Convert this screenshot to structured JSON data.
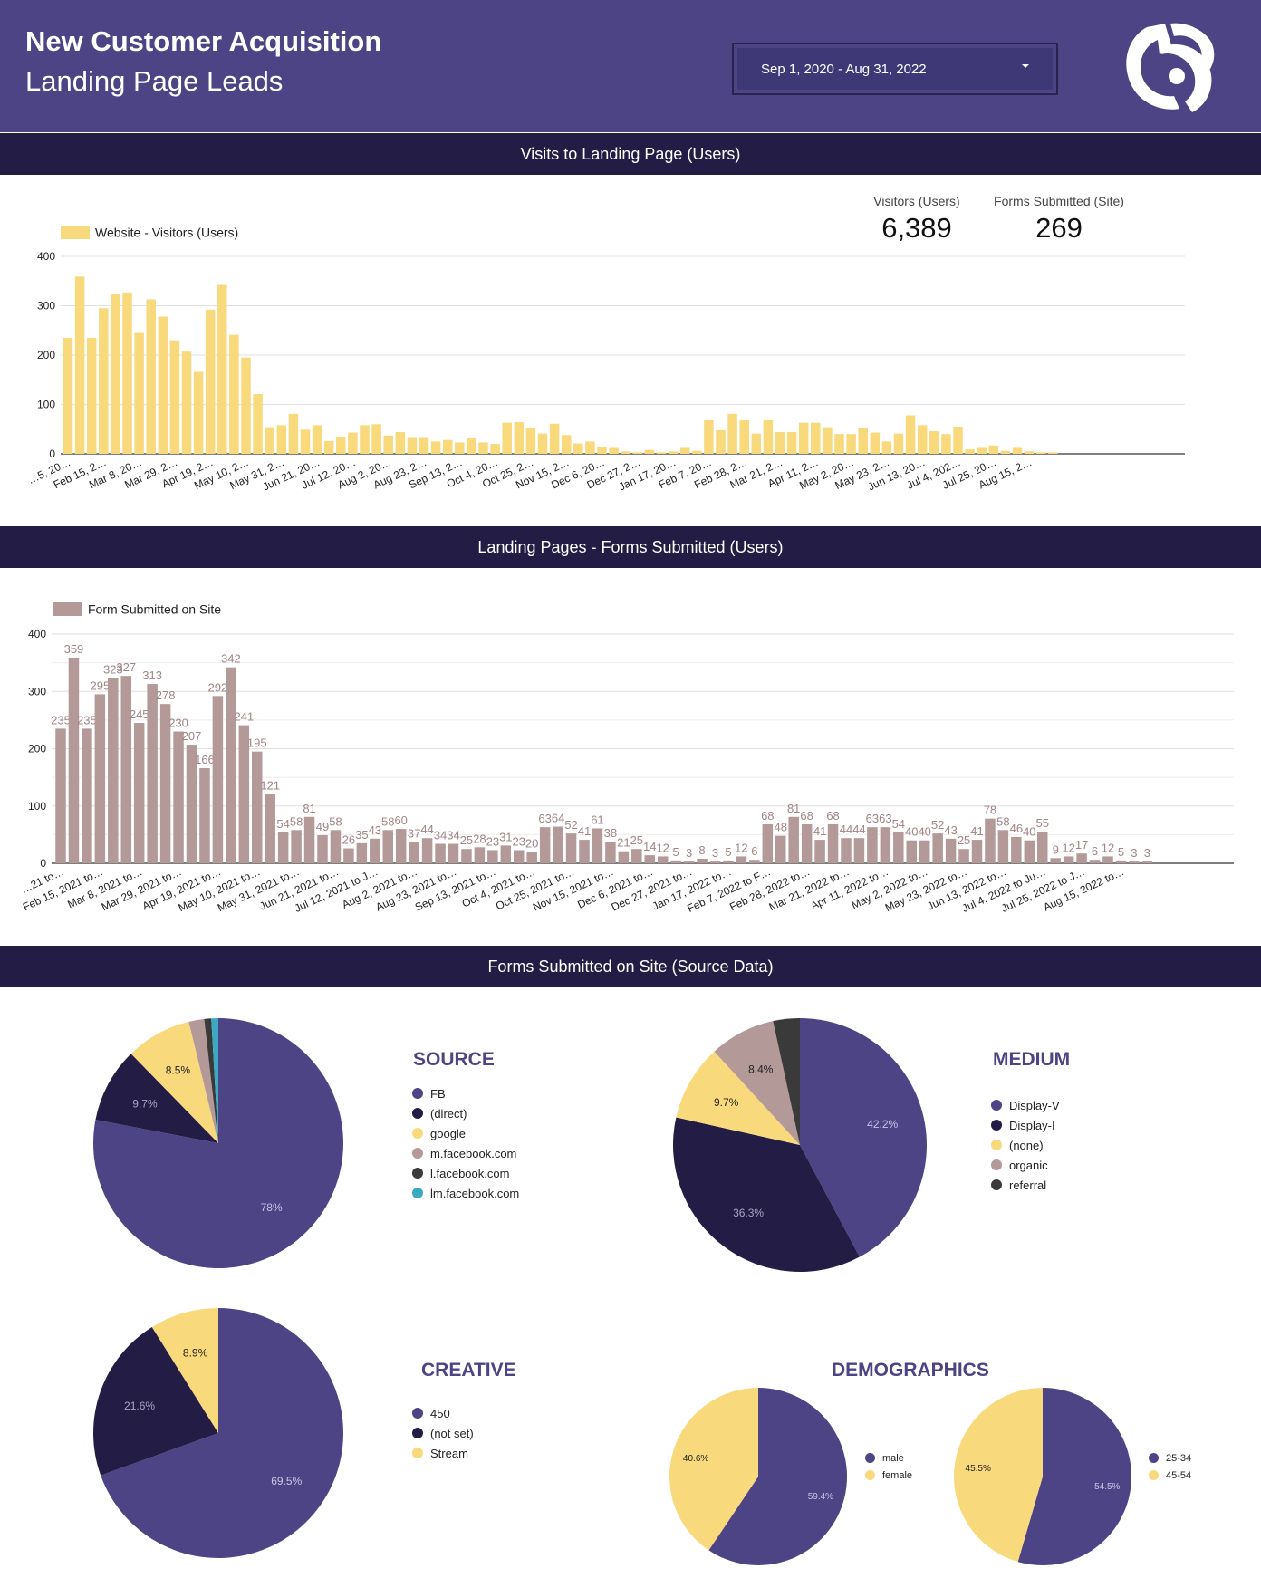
{
  "header": {
    "title": "New Customer Acquisition",
    "subtitle": "Landing Page Leads",
    "date_range": "Sep 1, 2020 - Aug 31, 2022"
  },
  "sections": {
    "visits": "Visits to Landing Page (Users)",
    "forms": "Landing Pages - Forms Submitted (Users)",
    "source": "Forms Submitted on Site (Source Data)"
  },
  "kpis": [
    {
      "label": "Visitors (Users)",
      "value": "6,389"
    },
    {
      "label": "Forms Submitted (Site)",
      "value": "269"
    }
  ],
  "colors": {
    "header_bg": "#4d4485",
    "band_bg": "#231d45",
    "yellow": "#f8d97c",
    "mauve": "#b49999",
    "purple": "#4d4485",
    "navy": "#231d45",
    "rose": "#b49999",
    "darkgray": "#3a3a3a",
    "teal": "#3ca9c3"
  },
  "chart_data": [
    {
      "type": "bar",
      "legend": "Website - Visitors (Users)",
      "x_tick_labels": [
        "…5, 20…",
        "Feb 15, 2…",
        "Mar 8, 20…",
        "Mar 29, 2…",
        "Apr 19, 2…",
        "May 10, 2…",
        "May 31, 2…",
        "Jun 21, 20…",
        "Jul 12, 20…",
        "Aug 2, 20…",
        "Aug 23, 2…",
        "Sep 13, 2…",
        "Oct 4, 20…",
        "Oct 25, 2…",
        "Nov 15, 2…",
        "Dec 6, 20…",
        "Dec 27, 2…",
        "Jan 17, 20…",
        "Feb 7, 20…",
        "Feb 28, 2…",
        "Mar 21, 2…",
        "Apr 11, 2…",
        "May 2, 20…",
        "May 23, 2…",
        "Jun 13, 20…",
        "Jul 4, 202…",
        "Jul 25, 20…",
        "Aug 15, 2…"
      ],
      "y_ticks": [
        0,
        100,
        200,
        300,
        400
      ],
      "ylim": [
        0,
        400
      ],
      "values": [
        235,
        359,
        235,
        295,
        323,
        327,
        245,
        313,
        278,
        230,
        207,
        166,
        292,
        342,
        241,
        195,
        121,
        54,
        58,
        81,
        49,
        58,
        26,
        35,
        43,
        58,
        60,
        37,
        44,
        34,
        34,
        25,
        28,
        23,
        31,
        23,
        20,
        63,
        64,
        52,
        41,
        61,
        38,
        21,
        25,
        14,
        12,
        5,
        3,
        8,
        3,
        5,
        12,
        6,
        68,
        48,
        81,
        68,
        41,
        68,
        44,
        44,
        63,
        63,
        54,
        40,
        40,
        52,
        43,
        25,
        41,
        78,
        58,
        46,
        40,
        55,
        9,
        12,
        17,
        6,
        12,
        5,
        3,
        3
      ]
    },
    {
      "type": "bar",
      "legend": "Form Submitted on Site",
      "x_tick_labels": [
        "…21 to…",
        "Feb 15, 2021 to…",
        "Mar 8, 2021 to…",
        "Mar 29, 2021 to…",
        "Apr 19, 2021 to…",
        "May 10, 2021 to…",
        "May 31, 2021 to…",
        "Jun 21, 2021 to…",
        "Jul 12, 2021 to J…",
        "Aug 2, 2021 to…",
        "Aug 23, 2021 to…",
        "Sep 13, 2021 to…",
        "Oct 4, 2021 to…",
        "Oct 25, 2021 to…",
        "Nov 15, 2021 to…",
        "Dec 6, 2021 to…",
        "Dec 27, 2021 to…",
        "Jan 17, 2022 to…",
        "Feb 7, 2022 to F…",
        "Feb 28, 2022 to…",
        "Mar 21, 2022 to…",
        "Apr 11, 2022 to…",
        "May 2, 2022 to…",
        "May 23, 2022 to…",
        "Jun 13, 2022 to…",
        "Jul 4, 2022 to Ju…",
        "Jul 25, 2022 to J…",
        "Aug 15, 2022 to…"
      ],
      "y_ticks": [
        0,
        100,
        200,
        300,
        400
      ],
      "ylim": [
        0,
        400
      ],
      "data_labels": [
        "235",
        "359",
        "235",
        "295",
        "323",
        "327",
        "245",
        "313",
        "278",
        "230",
        "207",
        "166",
        "292",
        "342",
        "241",
        "195",
        "121",
        "54",
        "58",
        "81",
        "49",
        "58",
        "26",
        "35",
        "43",
        "58",
        "60",
        "37",
        "44",
        "34",
        "34",
        "25",
        "28",
        "23",
        "31",
        "23",
        "20",
        "63",
        "64",
        "52",
        "41",
        "61",
        "38",
        "21",
        "25",
        "14",
        "12",
        "5",
        "3",
        "8",
        "3",
        "5",
        "12",
        "6",
        "68",
        "48",
        "81",
        "68",
        "41",
        "68",
        "44",
        "44",
        "63",
        "63",
        "54",
        "40",
        "40",
        "52",
        "43",
        "25",
        "41",
        "78",
        "58",
        "46",
        "40",
        "55",
        "9",
        "12",
        "17",
        "6",
        "12",
        "5",
        "3",
        "3"
      ],
      "values": [
        235,
        359,
        235,
        295,
        323,
        327,
        245,
        313,
        278,
        230,
        207,
        166,
        292,
        342,
        241,
        195,
        121,
        54,
        58,
        81,
        49,
        58,
        26,
        35,
        43,
        58,
        60,
        37,
        44,
        34,
        34,
        25,
        28,
        23,
        31,
        23,
        20,
        63,
        64,
        52,
        41,
        61,
        38,
        21,
        25,
        14,
        12,
        5,
        3,
        8,
        3,
        5,
        12,
        6,
        68,
        48,
        81,
        68,
        41,
        68,
        44,
        44,
        63,
        63,
        54,
        40,
        40,
        52,
        43,
        25,
        41,
        78,
        58,
        46,
        40,
        55,
        9,
        12,
        17,
        6,
        12,
        5,
        3,
        3
      ]
    },
    {
      "type": "pie",
      "title": "SOURCE",
      "slices": [
        {
          "label": "FB",
          "value": 78,
          "color": "#4d4485",
          "text": "78%",
          "text_color": "#c9c4e6"
        },
        {
          "label": "(direct)",
          "value": 9.7,
          "color": "#231d45",
          "text": "9.7%",
          "text_color": "#a8a4c4"
        },
        {
          "label": "google",
          "value": 8.5,
          "color": "#f8d97c",
          "text": "8.5%",
          "text_color": "#222"
        },
        {
          "label": "m.facebook.com",
          "value": 2.0,
          "color": "#b49999",
          "text": ""
        },
        {
          "label": "l.facebook.com",
          "value": 0.9,
          "color": "#3a3a3a",
          "text": ""
        },
        {
          "label": "lm.facebook.com",
          "value": 0.9,
          "color": "#3ca9c3",
          "text": ""
        }
      ]
    },
    {
      "type": "pie",
      "title": "MEDIUM",
      "slices": [
        {
          "label": "Display-V",
          "value": 42.2,
          "color": "#4d4485",
          "text": "42.2%",
          "text_color": "#c9c4e6"
        },
        {
          "label": "Display-I",
          "value": 36.3,
          "color": "#231d45",
          "text": "36.3%",
          "text_color": "#a8a4c4"
        },
        {
          "label": "(none)",
          "value": 9.7,
          "color": "#f8d97c",
          "text": "9.7%",
          "text_color": "#222"
        },
        {
          "label": "organic",
          "value": 8.4,
          "color": "#b49999",
          "text": "8.4%",
          "text_color": "#222"
        },
        {
          "label": "referral",
          "value": 3.4,
          "color": "#3a3a3a",
          "text": ""
        }
      ]
    },
    {
      "type": "pie",
      "title": "CREATIVE",
      "slices": [
        {
          "label": "450",
          "value": 69.5,
          "color": "#4d4485",
          "text": "69.5%",
          "text_color": "#c9c4e6"
        },
        {
          "label": "(not set)",
          "value": 21.6,
          "color": "#231d45",
          "text": "21.6%",
          "text_color": "#a8a4c4"
        },
        {
          "label": "Stream",
          "value": 8.9,
          "color": "#f8d97c",
          "text": "8.9%",
          "text_color": "#222"
        }
      ]
    },
    {
      "type": "pie",
      "title": "DEMOGRAPHICS",
      "slices": [
        {
          "label": "male",
          "value": 59.4,
          "color": "#4d4485",
          "text": "59.4%",
          "text_color": "#c9c4e6"
        },
        {
          "label": "female",
          "value": 40.6,
          "color": "#f8d97c",
          "text": "40.6%",
          "text_color": "#222"
        }
      ]
    },
    {
      "type": "pie",
      "title": "",
      "slices": [
        {
          "label": "25-34",
          "value": 54.5,
          "color": "#4d4485",
          "text": "54.5%",
          "text_color": "#c9c4e6"
        },
        {
          "label": "45-54",
          "value": 45.5,
          "color": "#f8d97c",
          "text": "45.5%",
          "text_color": "#222"
        }
      ]
    }
  ]
}
